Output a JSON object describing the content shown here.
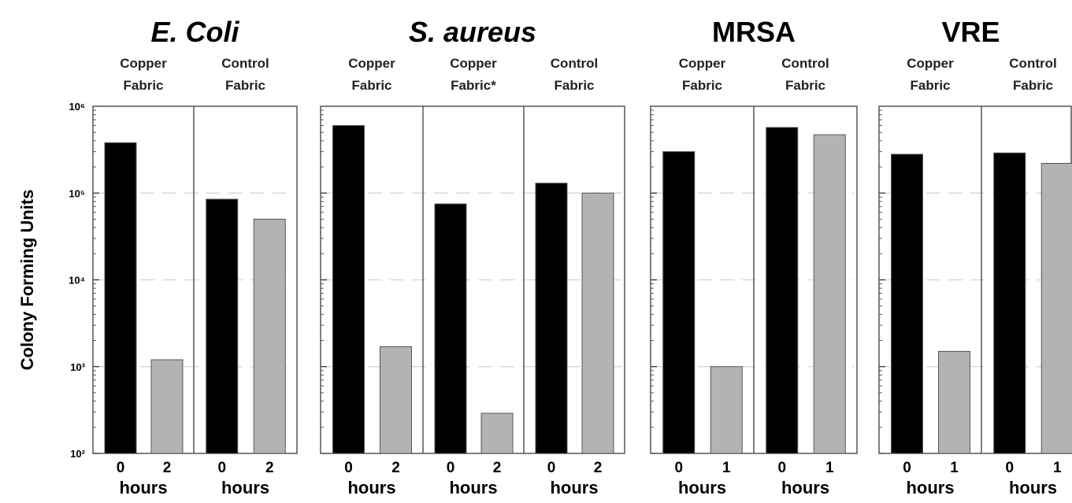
{
  "chart_data": {
    "type": "bar",
    "y_scale": "log",
    "ylim": [
      100,
      1000000
    ],
    "ylabel": "Colony Forming Units",
    "yticks": [
      {
        "value": 100,
        "label": "10²"
      },
      {
        "value": 1000,
        "label": "10³"
      },
      {
        "value": 10000,
        "label": "10⁴"
      },
      {
        "value": 100000,
        "label": "10⁵"
      },
      {
        "value": 1000000,
        "label": "10⁶"
      }
    ],
    "xlabel": "hours",
    "colors": {
      "time_0": "#000000",
      "time_after": "#b3b3b3"
    },
    "panels": [
      {
        "title": "E. Coli",
        "italic": true,
        "groups": [
          {
            "label_lines": [
              "Copper",
              "Fabric"
            ],
            "x": [
              "0",
              "2"
            ],
            "values": [
              380000,
              1200
            ]
          },
          {
            "label_lines": [
              "Control",
              "Fabric"
            ],
            "x": [
              "0",
              "2"
            ],
            "values": [
              85000,
              50000
            ]
          }
        ]
      },
      {
        "title": "S. aureus",
        "italic": true,
        "groups": [
          {
            "label_lines": [
              "Copper",
              "Fabric"
            ],
            "x": [
              "0",
              "2"
            ],
            "values": [
              600000,
              1700
            ]
          },
          {
            "label_lines": [
              "Copper",
              "Fabric*"
            ],
            "x": [
              "0",
              "2"
            ],
            "values": [
              75000,
              290
            ]
          },
          {
            "label_lines": [
              "Control",
              "Fabric"
            ],
            "x": [
              "0",
              "2"
            ],
            "values": [
              130000,
              100000
            ]
          }
        ]
      },
      {
        "title": "MRSA",
        "italic": false,
        "groups": [
          {
            "label_lines": [
              "Copper",
              "Fabric"
            ],
            "x": [
              "0",
              "1"
            ],
            "values": [
              300000,
              1000
            ]
          },
          {
            "label_lines": [
              "Control",
              "Fabric"
            ],
            "x": [
              "0",
              "1"
            ],
            "values": [
              570000,
              470000
            ]
          }
        ]
      },
      {
        "title": "VRE",
        "italic": false,
        "groups": [
          {
            "label_lines": [
              "Copper",
              "Fabric"
            ],
            "x": [
              "0",
              "1"
            ],
            "values": [
              280000,
              1500
            ]
          },
          {
            "label_lines": [
              "Control",
              "Fabric"
            ],
            "x": [
              "0",
              "1"
            ],
            "values": [
              290000,
              220000
            ]
          }
        ]
      }
    ]
  }
}
